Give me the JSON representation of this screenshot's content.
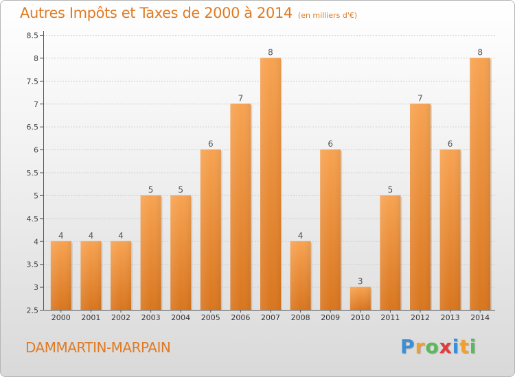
{
  "header": {
    "title": "Autres Impôts et Taxes de 2000 à 2014",
    "unit": "(en milliers d'€)"
  },
  "footer": {
    "city": "DAMMARTIN-MARPAIN",
    "logo_text": "Proxiti",
    "logo_letters": [
      {
        "char": "P",
        "color": "#3a8fd6"
      },
      {
        "char": "r",
        "color": "#f0a030"
      },
      {
        "char": "o",
        "color": "#5cb85c"
      },
      {
        "char": "x",
        "color": "#e03c3c"
      },
      {
        "char": "i",
        "color": "#3a8fd6"
      },
      {
        "char": "t",
        "color": "#f0a030"
      },
      {
        "char": "i",
        "color": "#5cb85c"
      }
    ]
  },
  "colors": {
    "accent": "#e07a23",
    "bar_top": "#f7a352",
    "bar_bottom": "#d9761f",
    "grid": "#d0d0d0"
  },
  "chart_data": {
    "type": "bar",
    "title": "Autres Impôts et Taxes de 2000 à 2014",
    "subtitle": "(en milliers d'€)",
    "categories": [
      "2000",
      "2001",
      "2002",
      "2003",
      "2004",
      "2005",
      "2006",
      "2007",
      "2008",
      "2009",
      "2010",
      "2011",
      "2012",
      "2013",
      "2014"
    ],
    "values": [
      4,
      4,
      4,
      5,
      5,
      6,
      7,
      8,
      4,
      6,
      3,
      5,
      7,
      6,
      8
    ],
    "data_labels": [
      "4",
      "4",
      "4",
      "5",
      "5",
      "6",
      "7",
      "8",
      "4",
      "6",
      "3",
      "5",
      "7",
      "6",
      "8"
    ],
    "ylim": [
      2.5,
      8.5
    ],
    "yticks": [
      2.5,
      3,
      3.5,
      4,
      4.5,
      5,
      5.5,
      6,
      6.5,
      7,
      7.5,
      8,
      8.5
    ],
    "ytick_labels": [
      "2.5",
      "3",
      "3.5",
      "4",
      "4.5",
      "5",
      "5.5",
      "6",
      "6.5",
      "7",
      "7.5",
      "8",
      "8.5"
    ],
    "xlabel": "",
    "ylabel": "",
    "grid": true,
    "legend": "none"
  }
}
